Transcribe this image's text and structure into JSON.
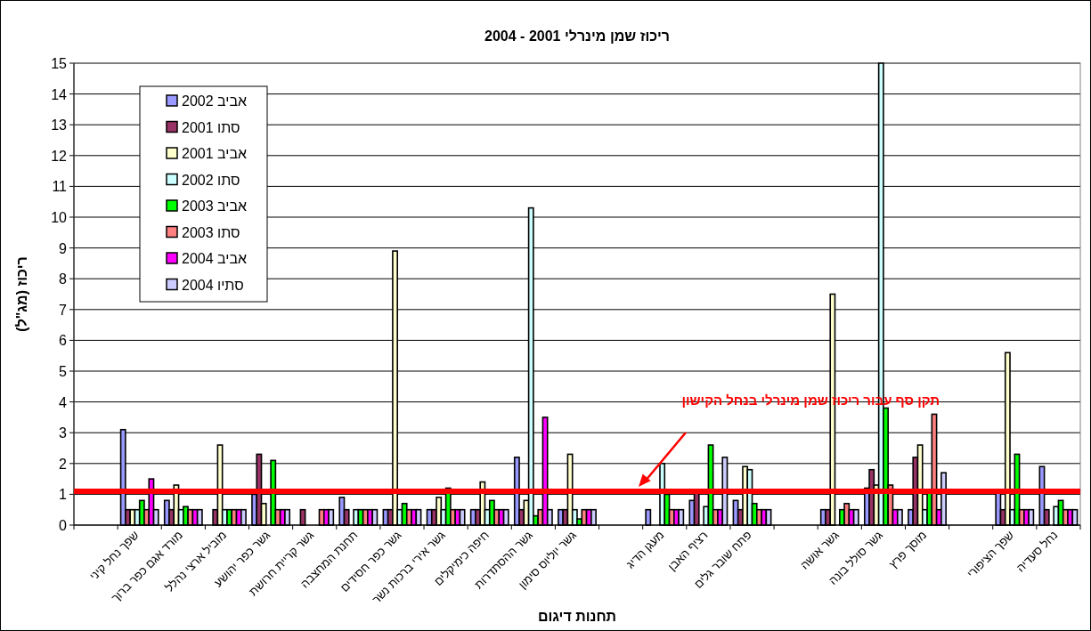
{
  "chart_data": {
    "type": "bar",
    "title": "ריכוז שמן מינרלי 2001 - 2004",
    "xlabel": "תחנות דיגום",
    "ylabel": "ריכוז (מג\"ל)",
    "categories": [
      null,
      "שפך נחל קיני",
      "מורד אגם כפר ברוך",
      "מוביל ארצי נהלל",
      "גשר כפר יהושע",
      "גשר קריית חרושת",
      "תחנת המחצבה",
      "גשר כפר חסידים",
      "גשר אירי ברכות נשר",
      "חיפה כימיקלים",
      "גשר ההסתדרות",
      "גשר יוליוס סימון",
      null,
      "מעגן הדיג",
      "רציף האבן",
      "פתח שובר גלים",
      null,
      "גשר אושה",
      "גשר סולל בונה",
      "מוסך פרץ",
      null,
      "שפך הציפורי",
      "נחל סעדיה"
    ],
    "series": [
      {
        "name": "אביב 2002",
        "color": "#9999ff",
        "values": [
          null,
          3.1,
          0.8,
          null,
          1.0,
          null,
          0.9,
          0.5,
          0.5,
          0.5,
          2.2,
          0.5,
          null,
          0.5,
          0.8,
          0.8,
          null,
          0.5,
          1.2,
          0.5,
          null,
          1.1,
          1.9
        ]
      },
      {
        "name": "סתו 2001",
        "color": "#993366",
        "values": [
          null,
          0.5,
          0.5,
          0.5,
          2.3,
          0.5,
          0.5,
          0.5,
          0.5,
          0.5,
          0.5,
          0.5,
          null,
          null,
          1.1,
          0.5,
          null,
          0.5,
          1.8,
          2.2,
          null,
          0.5,
          0.5
        ]
      },
      {
        "name": "אביב 2001",
        "color": "#ffffcc",
        "values": [
          null,
          0.5,
          1.3,
          2.6,
          0.7,
          null,
          null,
          8.9,
          0.9,
          1.4,
          0.8,
          2.3,
          null,
          null,
          null,
          1.9,
          null,
          7.5,
          1.3,
          2.6,
          null,
          5.6,
          null
        ]
      },
      {
        "name": "סתו 2002",
        "color": "#ccffff",
        "values": [
          null,
          0.5,
          0.5,
          0.5,
          null,
          null,
          0.5,
          0.5,
          0.5,
          0.5,
          10.3,
          0.5,
          null,
          2.0,
          0.6,
          1.8,
          null,
          null,
          15,
          0.5,
          null,
          0.5,
          0.6
        ]
      },
      {
        "name": "אביב 2003",
        "color": "#00ff00",
        "values": [
          null,
          0.8,
          0.6,
          0.5,
          2.1,
          null,
          0.5,
          0.7,
          1.2,
          0.8,
          0.3,
          0.2,
          null,
          1.0,
          2.6,
          0.7,
          null,
          0.5,
          3.8,
          1.1,
          null,
          2.3,
          0.8
        ]
      },
      {
        "name": "סתו 2003",
        "color": "#ff8080",
        "values": [
          null,
          0.5,
          0.5,
          0.5,
          0.5,
          0.5,
          0.5,
          0.5,
          0.5,
          0.5,
          0.5,
          0.5,
          null,
          0.5,
          0.5,
          0.5,
          null,
          0.7,
          1.3,
          3.6,
          null,
          0.5,
          0.5
        ]
      },
      {
        "name": "אביב 2004",
        "color": "#ff00ff",
        "values": [
          null,
          1.5,
          0.5,
          0.5,
          0.5,
          0.5,
          0.5,
          0.5,
          0.5,
          0.5,
          3.5,
          0.5,
          null,
          0.5,
          0.5,
          0.5,
          null,
          0.5,
          0.5,
          0.5,
          null,
          0.5,
          0.5
        ]
      },
      {
        "name": "סתיו 2004",
        "color": "#ccccff",
        "values": [
          null,
          0.5,
          0.5,
          0.5,
          0.5,
          0.5,
          0.5,
          0.5,
          0.5,
          0.5,
          0.5,
          0.5,
          null,
          0.5,
          2.2,
          0.5,
          null,
          0.5,
          0.5,
          1.7,
          null,
          0.5,
          0.5
        ]
      }
    ],
    "ylim": [
      0,
      15
    ],
    "yticks": [
      0,
      1,
      2,
      3,
      4,
      5,
      6,
      7,
      8,
      9,
      10,
      11,
      12,
      13,
      14,
      15
    ],
    "grid": "y",
    "legend": "top left",
    "ref_lines": [
      {
        "axis": "y",
        "value": 1.1,
        "label": "תקן סף עבור ריכוז שמן מינרלי בנחל הקישון",
        "color": "#ff0000"
      }
    ]
  }
}
